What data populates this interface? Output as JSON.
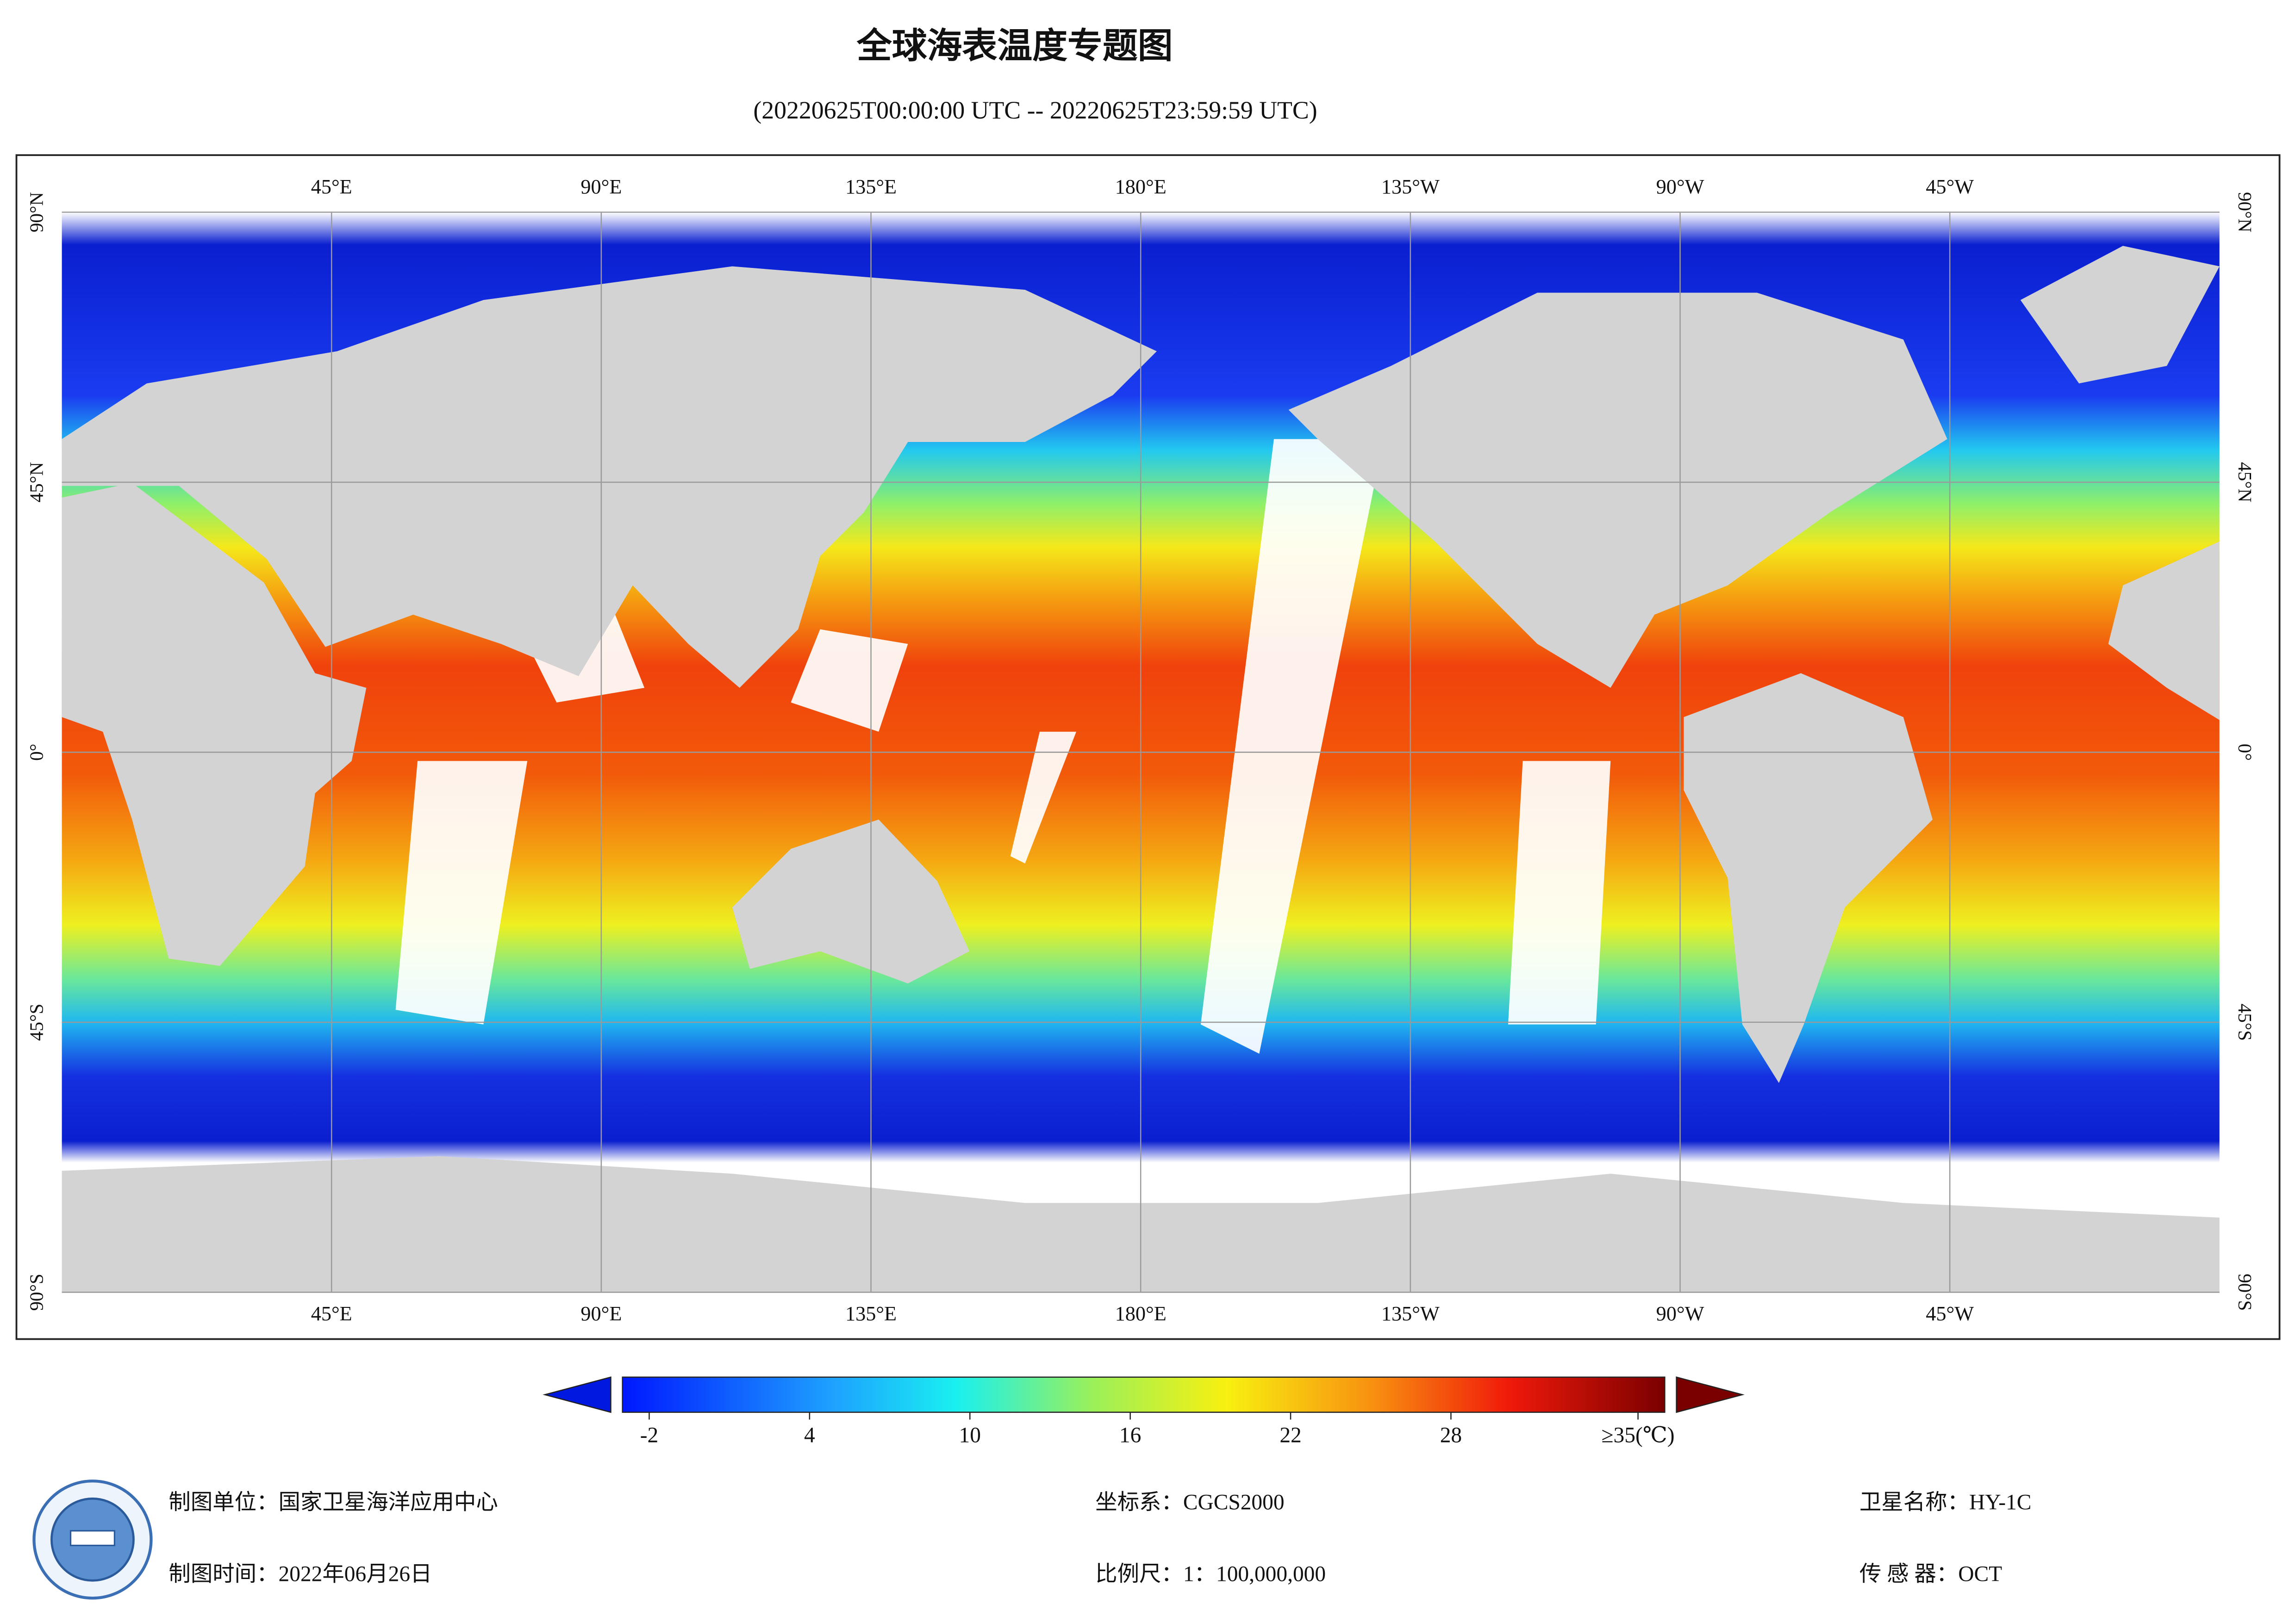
{
  "map": {
    "title": "全球海表温度专题图",
    "subtitle": "(20220625T00:00:00 UTC -- 20220625T23:59:59 UTC)",
    "lon_range": [
      0,
      360
    ],
    "lat_range": [
      -90,
      90
    ],
    "lon_ticks": [
      {
        "value": 45,
        "label": "45°E"
      },
      {
        "value": 90,
        "label": "90°E"
      },
      {
        "value": 135,
        "label": "135°E"
      },
      {
        "value": 180,
        "label": "180°E"
      },
      {
        "value": 225,
        "label": "135°W"
      },
      {
        "value": 270,
        "label": "90°W"
      },
      {
        "value": 315,
        "label": "45°W"
      }
    ],
    "lat_ticks": [
      {
        "value": 90,
        "label": "90°N"
      },
      {
        "value": 45,
        "label": "45°N"
      },
      {
        "value": 0,
        "label": "0°"
      },
      {
        "value": -45,
        "label": "45°S"
      },
      {
        "value": -90,
        "label": "90°S"
      }
    ],
    "colorbar": {
      "range": [
        -3,
        36
      ],
      "ticks": [
        -2,
        4,
        10,
        16,
        22,
        28,
        {
          "value": 35,
          "label": "≥35(℃)"
        }
      ]
    },
    "footer": {
      "producer": "制图单位：国家卫星海洋应用中心",
      "date": "制图时间：2022年06月26日",
      "crs": "坐标系：CGCS2000",
      "scale": "比例尺：1：100,000,000",
      "satellite": "卫星名称：HY-1C",
      "sensor": "传 感 器：OCT"
    }
  }
}
